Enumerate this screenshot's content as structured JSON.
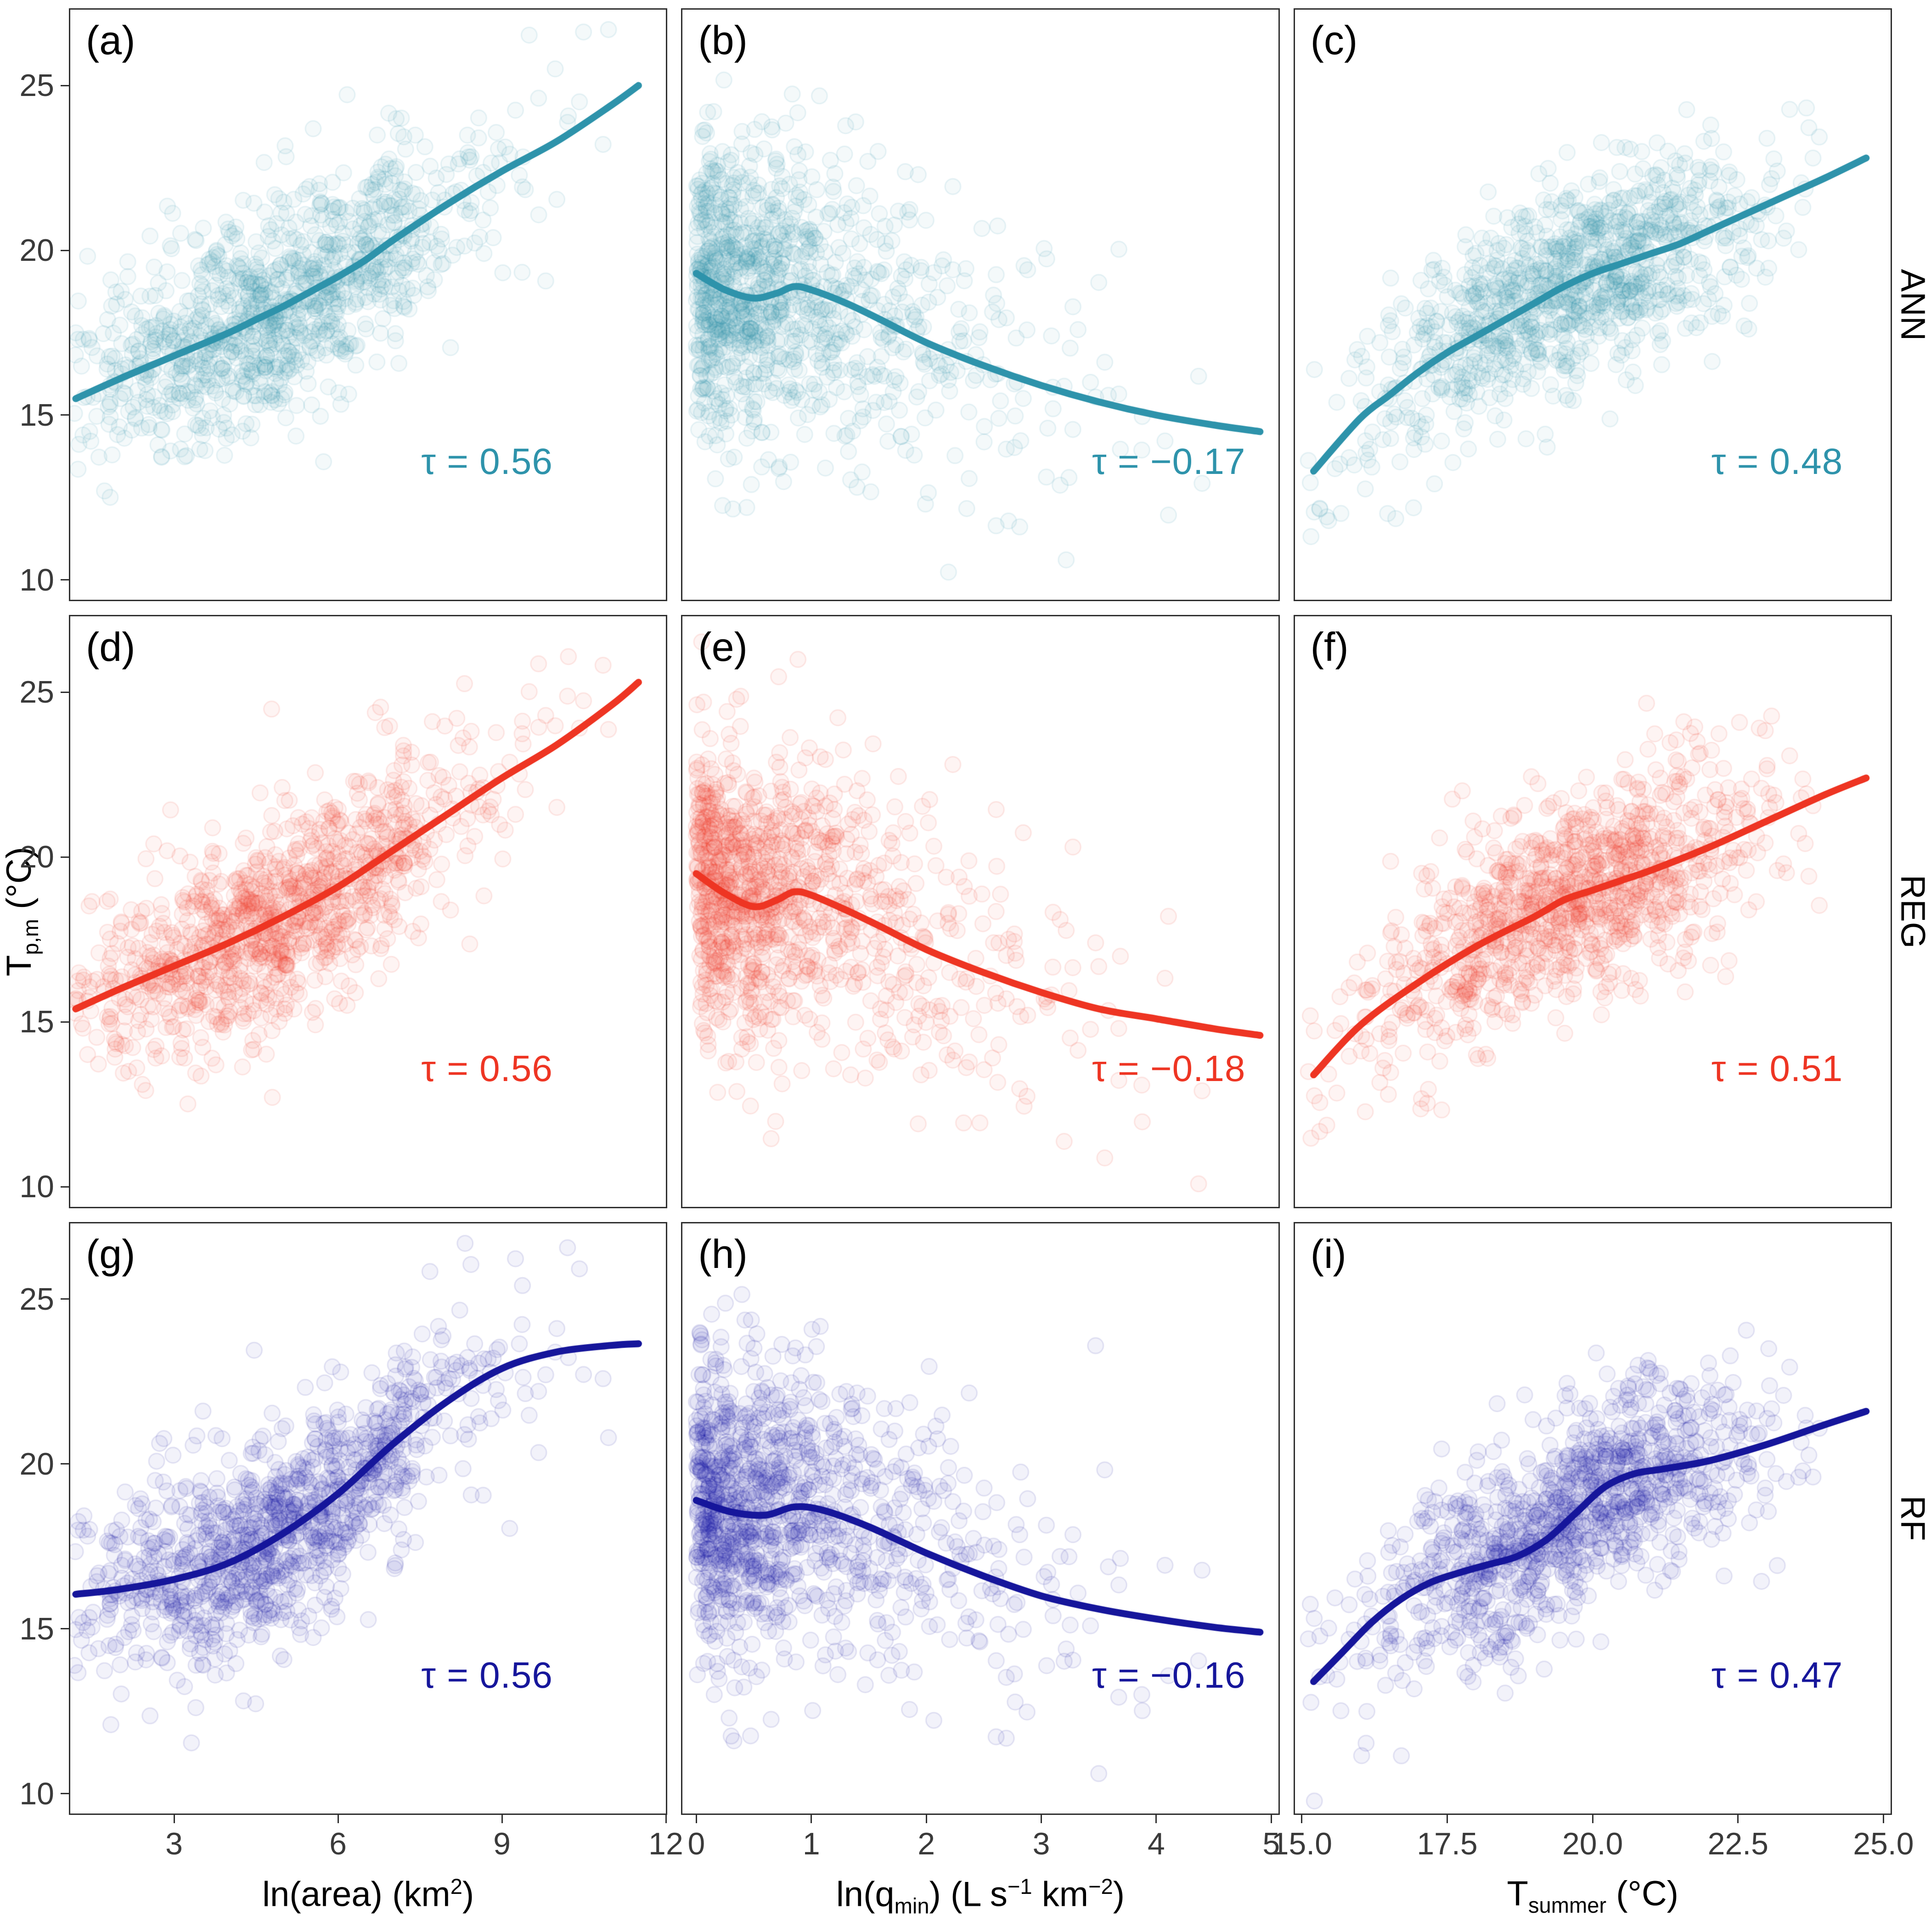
{
  "figure": {
    "y_axis_title_html": "T<sub>p,m</sub> (&#176;C)",
    "x_axis_titles_html": [
      "ln(area) (km<sup>2</sup>)",
      "ln(q<sub>min</sub>) (L s<sup>&#8722;1</sup> km<sup>&#8722;2</sup>)",
      "T<sub>summer</sub> (&#176;C)"
    ],
    "row_strip_labels": [
      "ANN",
      "REG",
      "RF"
    ],
    "colors": {
      "ann": "#2e93ab",
      "reg": "#ee3523",
      "rf": "#16169b",
      "axis_text": "#3a3a3a",
      "panel_border": "#2f2f2f"
    }
  },
  "chart_data": {
    "type": "scatter",
    "title": "",
    "ylabel": "T_p,m (degC)",
    "xlabels": [
      "ln(area) (km2)",
      "ln(q_min) (L s-1 km-2)",
      "T_summer (degC)"
    ],
    "row_labels": [
      "ANN",
      "REG",
      "RF"
    ],
    "y_range": [
      9.4,
      27.3
    ],
    "y_ticks": {
      "values": [
        10,
        15,
        20,
        25
      ],
      "labels": [
        "10",
        "15",
        "20",
        "25"
      ]
    },
    "x_ranges": [
      [
        1.1,
        12.0
      ],
      [
        -0.12,
        5.06
      ],
      [
        14.88,
        25.12
      ]
    ],
    "x_ticks_by_col": [
      {
        "values": [
          3,
          6,
          9,
          12
        ],
        "labels": [
          "3",
          "6",
          "9",
          "12"
        ]
      },
      {
        "values": [
          0,
          1,
          2,
          3,
          4,
          5
        ],
        "labels": [
          "0",
          "1",
          "2",
          "3",
          "4",
          "5"
        ]
      },
      {
        "values": [
          15,
          17.5,
          20,
          22.5,
          25
        ],
        "labels": [
          "15.0",
          "17.5",
          "20.0",
          "22.5",
          "25.0"
        ]
      }
    ],
    "x_dists": [
      {
        "type": "normal",
        "mean": 4.9,
        "sd": 1.85,
        "min": 1.15,
        "max": 11.6,
        "seed": 7,
        "n": 1100
      },
      {
        "type": "exp",
        "scale": 0.85,
        "min": 0,
        "max": 4.9,
        "seed": 8,
        "n": 1100
      },
      {
        "type": "normal",
        "mean": 19.6,
        "sd": 1.75,
        "min": 15.1,
        "max": 24.8,
        "seed": 9,
        "n": 1100
      }
    ],
    "noise_sd_by_col": [
      1.55,
      2.15,
      1.5
    ],
    "panels": [
      {
        "id": "a",
        "row": 0,
        "col": 0,
        "series": "ANN",
        "color_key": "ann",
        "label": "(a)",
        "tau_value": 0.56,
        "tau_label": "τ = 0.56",
        "seed": 11,
        "trend": [
          [
            1.2,
            15.5
          ],
          [
            2,
            16.1
          ],
          [
            3,
            16.8
          ],
          [
            4,
            17.5
          ],
          [
            4.5,
            17.9
          ],
          [
            5,
            18.3
          ],
          [
            5.5,
            18.75
          ],
          [
            6,
            19.2
          ],
          [
            6.5,
            19.7
          ],
          [
            7,
            20.3
          ],
          [
            8,
            21.4
          ],
          [
            9,
            22.4
          ],
          [
            10,
            23.3
          ],
          [
            11,
            24.4
          ],
          [
            11.5,
            25.0
          ]
        ]
      },
      {
        "id": "b",
        "row": 0,
        "col": 1,
        "series": "ANN",
        "color_key": "ann",
        "label": "(b)",
        "tau_value": -0.17,
        "tau_label": "τ = −0.17",
        "seed": 12,
        "trend": [
          [
            0,
            19.3
          ],
          [
            0.25,
            18.8
          ],
          [
            0.5,
            18.55
          ],
          [
            0.7,
            18.7
          ],
          [
            0.85,
            18.9
          ],
          [
            1.0,
            18.8
          ],
          [
            1.3,
            18.4
          ],
          [
            1.6,
            17.9
          ],
          [
            2.0,
            17.2
          ],
          [
            2.5,
            16.5
          ],
          [
            3.0,
            15.9
          ],
          [
            3.5,
            15.4
          ],
          [
            4.0,
            15.0
          ],
          [
            4.5,
            14.7
          ],
          [
            4.9,
            14.5
          ]
        ]
      },
      {
        "id": "c",
        "row": 0,
        "col": 2,
        "series": "ANN",
        "color_key": "ann",
        "label": "(c)",
        "tau_value": 0.48,
        "tau_label": "τ = 0.48",
        "seed": 13,
        "trend": [
          [
            15.2,
            13.3
          ],
          [
            16,
            14.9
          ],
          [
            16.5,
            15.6
          ],
          [
            17,
            16.3
          ],
          [
            17.5,
            16.9
          ],
          [
            18,
            17.4
          ],
          [
            18.5,
            17.9
          ],
          [
            19,
            18.4
          ],
          [
            19.5,
            18.9
          ],
          [
            20,
            19.3
          ],
          [
            20.5,
            19.6
          ],
          [
            21,
            19.9
          ],
          [
            21.5,
            20.2
          ],
          [
            22,
            20.6
          ],
          [
            22.5,
            21.0
          ],
          [
            23,
            21.4
          ],
          [
            23.5,
            21.8
          ],
          [
            24,
            22.2
          ],
          [
            24.7,
            22.8
          ]
        ]
      },
      {
        "id": "d",
        "row": 1,
        "col": 0,
        "series": "REG",
        "color_key": "reg",
        "label": "(d)",
        "tau_value": 0.56,
        "tau_label": "τ = 0.56",
        "seed": 21,
        "trend": [
          [
            1.2,
            15.4
          ],
          [
            2,
            16.0
          ],
          [
            3,
            16.7
          ],
          [
            4,
            17.4
          ],
          [
            5,
            18.2
          ],
          [
            6,
            19.1
          ],
          [
            7,
            20.2
          ],
          [
            8,
            21.3
          ],
          [
            9,
            22.4
          ],
          [
            10,
            23.4
          ],
          [
            11,
            24.6
          ],
          [
            11.5,
            25.3
          ]
        ]
      },
      {
        "id": "e",
        "row": 1,
        "col": 1,
        "series": "REG",
        "color_key": "reg",
        "label": "(e)",
        "tau_value": -0.18,
        "tau_label": "τ = −0.18",
        "seed": 22,
        "trend": [
          [
            0,
            19.5
          ],
          [
            0.25,
            18.9
          ],
          [
            0.5,
            18.5
          ],
          [
            0.7,
            18.7
          ],
          [
            0.85,
            18.95
          ],
          [
            1.0,
            18.85
          ],
          [
            1.3,
            18.4
          ],
          [
            1.6,
            17.9
          ],
          [
            2.0,
            17.2
          ],
          [
            2.5,
            16.5
          ],
          [
            3.0,
            15.9
          ],
          [
            3.5,
            15.4
          ],
          [
            4.0,
            15.1
          ],
          [
            4.5,
            14.8
          ],
          [
            4.9,
            14.6
          ]
        ]
      },
      {
        "id": "f",
        "row": 1,
        "col": 2,
        "series": "REG",
        "color_key": "reg",
        "label": "(f)",
        "tau_value": 0.51,
        "tau_label": "τ = 0.51",
        "seed": 23,
        "trend": [
          [
            15.2,
            13.4
          ],
          [
            16,
            14.9
          ],
          [
            17,
            16.2
          ],
          [
            18,
            17.3
          ],
          [
            19,
            18.2
          ],
          [
            19.5,
            18.7
          ],
          [
            20,
            19.0
          ],
          [
            20.5,
            19.3
          ],
          [
            21,
            19.6
          ],
          [
            22,
            20.3
          ],
          [
            23,
            21.1
          ],
          [
            24,
            21.9
          ],
          [
            24.7,
            22.4
          ]
        ]
      },
      {
        "id": "g",
        "row": 2,
        "col": 0,
        "series": "RF",
        "color_key": "rf",
        "label": "(g)",
        "tau_value": 0.56,
        "tau_label": "τ = 0.56",
        "seed": 31,
        "trend": [
          [
            1.2,
            16.05
          ],
          [
            2,
            16.2
          ],
          [
            3,
            16.5
          ],
          [
            4,
            17.0
          ],
          [
            5,
            17.9
          ],
          [
            6,
            19.1
          ],
          [
            7,
            20.6
          ],
          [
            8,
            21.9
          ],
          [
            9,
            22.9
          ],
          [
            10,
            23.4
          ],
          [
            11,
            23.6
          ],
          [
            11.5,
            23.65
          ]
        ]
      },
      {
        "id": "h",
        "row": 2,
        "col": 1,
        "series": "RF",
        "color_key": "rf",
        "label": "(h)",
        "tau_value": -0.16,
        "tau_label": "τ = −0.16",
        "seed": 32,
        "trend": [
          [
            0,
            18.9
          ],
          [
            0.3,
            18.55
          ],
          [
            0.6,
            18.45
          ],
          [
            0.85,
            18.7
          ],
          [
            1.1,
            18.6
          ],
          [
            1.5,
            18.1
          ],
          [
            2.0,
            17.3
          ],
          [
            2.5,
            16.6
          ],
          [
            3.0,
            16.0
          ],
          [
            3.5,
            15.6
          ],
          [
            4.0,
            15.3
          ],
          [
            4.5,
            15.05
          ],
          [
            4.9,
            14.9
          ]
        ]
      },
      {
        "id": "i",
        "row": 2,
        "col": 2,
        "series": "RF",
        "color_key": "rf",
        "label": "(i)",
        "tau_value": 0.47,
        "tau_label": "τ = 0.47",
        "seed": 33,
        "trend": [
          [
            15.2,
            13.4
          ],
          [
            15.7,
            14.3
          ],
          [
            16.2,
            15.2
          ],
          [
            16.7,
            15.9
          ],
          [
            17.2,
            16.4
          ],
          [
            17.7,
            16.7
          ],
          [
            18.2,
            16.95
          ],
          [
            18.7,
            17.2
          ],
          [
            19.2,
            17.7
          ],
          [
            19.7,
            18.5
          ],
          [
            20.2,
            19.3
          ],
          [
            20.7,
            19.7
          ],
          [
            21.2,
            19.85
          ],
          [
            22,
            20.1
          ],
          [
            23,
            20.6
          ],
          [
            24,
            21.2
          ],
          [
            24.7,
            21.6
          ]
        ]
      }
    ]
  }
}
